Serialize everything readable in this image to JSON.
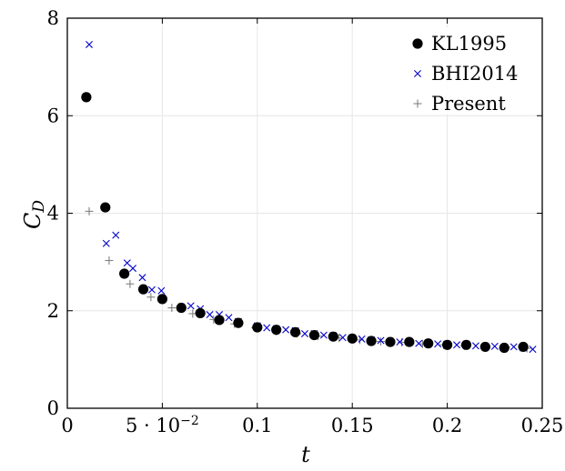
{
  "chart_data": {
    "type": "scatter",
    "xlabel": "t",
    "ylabel": "C",
    "ylabel_sub": "D",
    "xlim": [
      0,
      0.25
    ],
    "ylim": [
      0,
      8
    ],
    "grid": true,
    "legend_position": "top-right",
    "x_ticks": [
      0,
      0.05,
      0.1,
      0.15,
      0.2,
      0.25
    ],
    "x_tick_labels": [
      "0",
      "5 · 10",
      "0.1",
      "0.15",
      "0.2",
      "0.25"
    ],
    "x_tick_sci_exponent": "−2",
    "y_ticks": [
      0,
      2,
      4,
      6,
      8
    ],
    "y_tick_labels": [
      "0",
      "2",
      "4",
      "6",
      "8"
    ],
    "series": [
      {
        "name": "KL1995",
        "marker": "circle",
        "color": "#000000",
        "points": [
          [
            0.01,
            6.38
          ],
          [
            0.02,
            4.12
          ],
          [
            0.03,
            2.76
          ],
          [
            0.04,
            2.44
          ],
          [
            0.05,
            2.24
          ],
          [
            0.06,
            2.06
          ],
          [
            0.07,
            1.95
          ],
          [
            0.08,
            1.81
          ],
          [
            0.09,
            1.75
          ],
          [
            0.1,
            1.66
          ],
          [
            0.11,
            1.61
          ],
          [
            0.12,
            1.56
          ],
          [
            0.13,
            1.5
          ],
          [
            0.14,
            1.47
          ],
          [
            0.15,
            1.43
          ],
          [
            0.16,
            1.38
          ],
          [
            0.17,
            1.36
          ],
          [
            0.18,
            1.36
          ],
          [
            0.19,
            1.33
          ],
          [
            0.2,
            1.3
          ],
          [
            0.21,
            1.3
          ],
          [
            0.22,
            1.26
          ],
          [
            0.23,
            1.24
          ],
          [
            0.24,
            1.26
          ]
        ]
      },
      {
        "name": "BHI2014",
        "marker": "x",
        "color": "#0000cc",
        "points": [
          [
            0.0115,
            7.46
          ],
          [
            0.0205,
            3.38
          ],
          [
            0.0255,
            3.55
          ],
          [
            0.0315,
            2.98
          ],
          [
            0.0345,
            2.87
          ],
          [
            0.0395,
            2.68
          ],
          [
            0.0445,
            2.43
          ],
          [
            0.0495,
            2.41
          ],
          [
            0.06,
            2.07
          ],
          [
            0.065,
            2.1
          ],
          [
            0.07,
            2.04
          ],
          [
            0.075,
            1.92
          ],
          [
            0.08,
            1.92
          ],
          [
            0.085,
            1.86
          ],
          [
            0.09,
            1.78
          ],
          [
            0.1,
            1.69
          ],
          [
            0.105,
            1.65
          ],
          [
            0.11,
            1.63
          ],
          [
            0.115,
            1.61
          ],
          [
            0.12,
            1.59
          ],
          [
            0.125,
            1.53
          ],
          [
            0.13,
            1.53
          ],
          [
            0.135,
            1.5
          ],
          [
            0.14,
            1.49
          ],
          [
            0.145,
            1.45
          ],
          [
            0.15,
            1.44
          ],
          [
            0.155,
            1.42
          ],
          [
            0.16,
            1.4
          ],
          [
            0.165,
            1.39
          ],
          [
            0.17,
            1.37
          ],
          [
            0.175,
            1.36
          ],
          [
            0.18,
            1.35
          ],
          [
            0.185,
            1.33
          ],
          [
            0.19,
            1.34
          ],
          [
            0.195,
            1.32
          ],
          [
            0.2,
            1.31
          ],
          [
            0.205,
            1.3
          ],
          [
            0.21,
            1.29
          ],
          [
            0.215,
            1.28
          ],
          [
            0.22,
            1.27
          ],
          [
            0.225,
            1.27
          ],
          [
            0.23,
            1.25
          ],
          [
            0.235,
            1.26
          ],
          [
            0.24,
            1.24
          ],
          [
            0.245,
            1.21
          ]
        ]
      },
      {
        "name": "Present",
        "marker": "plus",
        "color": "#808080",
        "points": [
          [
            0.0115,
            4.04
          ],
          [
            0.022,
            3.03
          ],
          [
            0.033,
            2.55
          ],
          [
            0.044,
            2.28
          ],
          [
            0.055,
            2.06
          ],
          [
            0.066,
            1.94
          ],
          [
            0.077,
            1.82
          ],
          [
            0.088,
            1.73
          ],
          [
            0.099,
            1.65
          ],
          [
            0.11,
            1.58
          ],
          [
            0.121,
            1.53
          ],
          [
            0.132,
            1.48
          ],
          [
            0.143,
            1.44
          ],
          [
            0.154,
            1.4
          ],
          [
            0.165,
            1.37
          ],
          [
            0.176,
            1.35
          ],
          [
            0.187,
            1.32
          ],
          [
            0.198,
            1.3
          ],
          [
            0.209,
            1.28
          ],
          [
            0.22,
            1.26
          ],
          [
            0.231,
            1.25
          ],
          [
            0.242,
            1.23
          ]
        ]
      }
    ]
  }
}
